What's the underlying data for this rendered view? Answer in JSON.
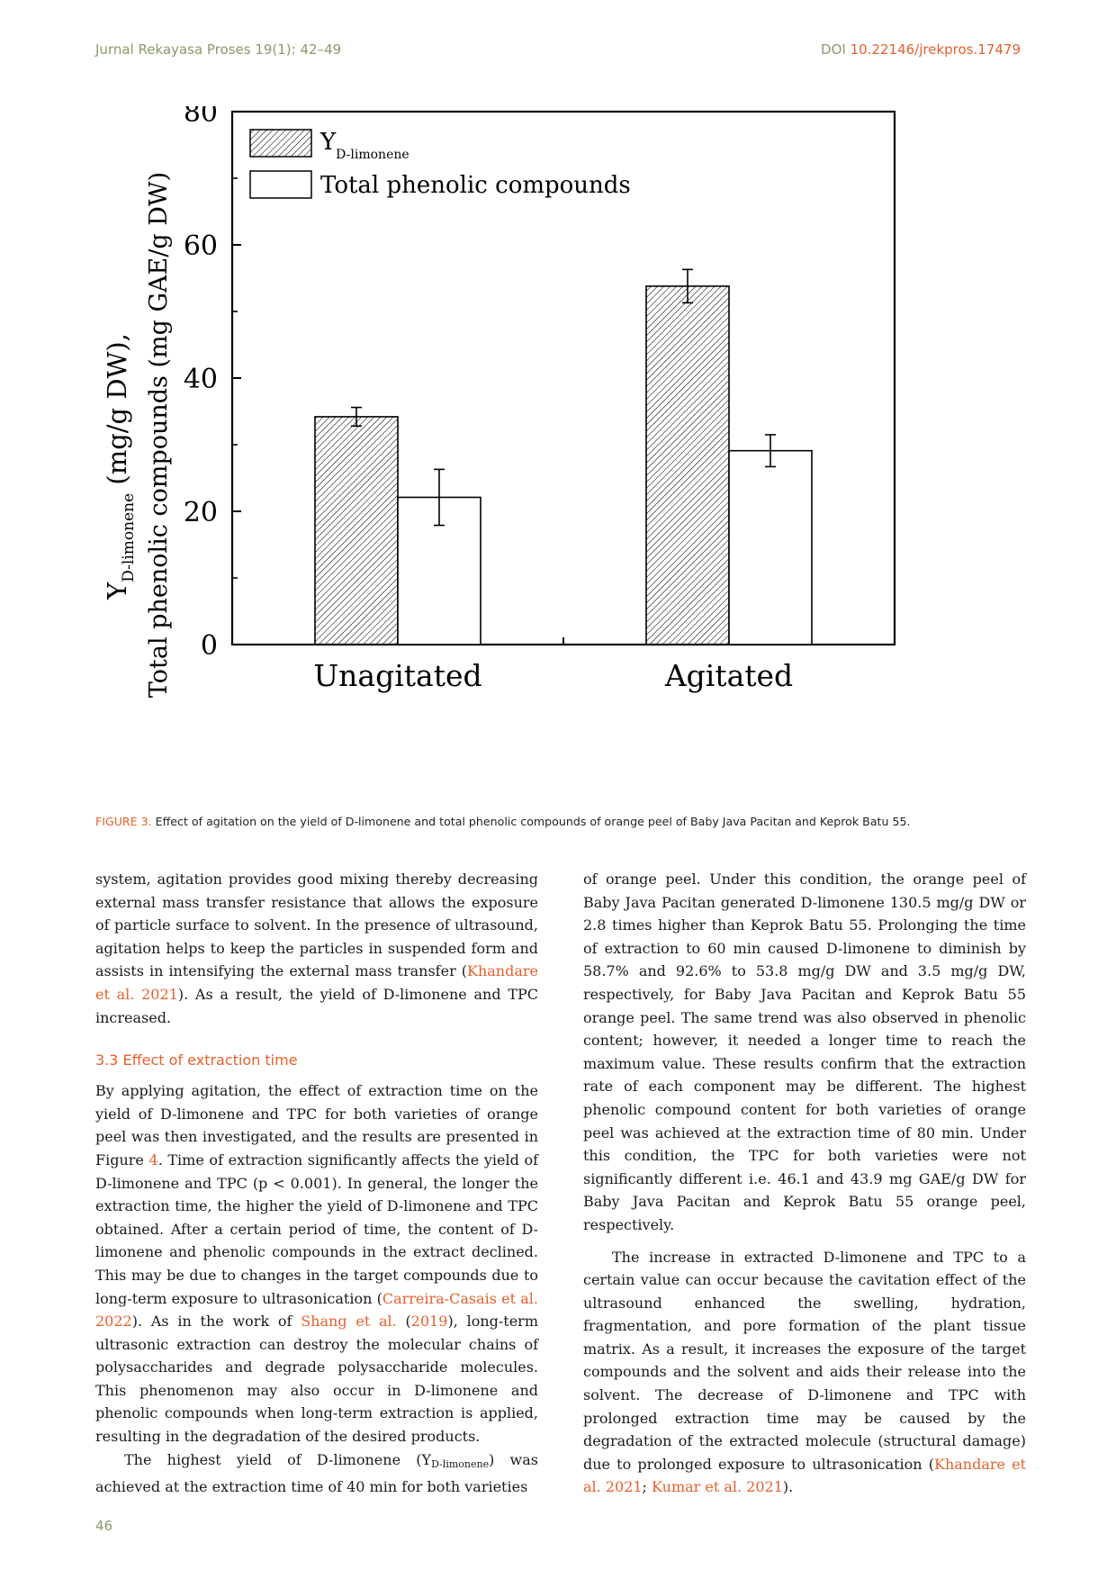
{
  "header": {
    "journal": "Jurnal Rekayasa Proses 19(1): 42–49",
    "doi_prefix": "DOI ",
    "doi": "10.22146/jrekpros.17479"
  },
  "chart_data": {
    "type": "bar",
    "categories": [
      "Unagitated",
      "Agitated"
    ],
    "series": [
      {
        "name": "Y D-limonene",
        "pattern": "hatched",
        "values": [
          34.2,
          53.8
        ],
        "errors": [
          1.4,
          2.5
        ]
      },
      {
        "name": "Total phenolic compounds",
        "pattern": "none",
        "values": [
          22.1,
          29.1
        ],
        "errors": [
          4.2,
          2.4
        ]
      }
    ],
    "ylim": [
      0,
      80
    ],
    "yticks": [
      "0",
      "20",
      "40",
      "60",
      "80"
    ],
    "ylabel_line1_main": "Y",
    "ylabel_line1_sub": "D-limonene",
    "ylabel_line1_tail": " (mg/g DW),",
    "ylabel_line2": "Total phenolic compounds (mg GAE/g DW)",
    "legend_y_main": "Y",
    "legend_y_sub": "D-limonene",
    "legend_tpc": "Total phenolic compounds",
    "legend_position": "top-left"
  },
  "caption": {
    "label": "FIGURE 3.",
    "text": " Effect of agitation on the yield of D-limonene and total phenolic compounds of orange peel of Baby Java Pacitan and Keprok Batu 55."
  },
  "left_column": {
    "p1_a": "system, agitation provides good mixing thereby decreasing external mass transfer resistance that allows the exposure of particle surface to solvent. In the presence of ultrasound, agitation helps to keep the particles in suspended form and assists in intensifying the external mass transfer (",
    "p1_cite": "Khandare et al. 2021",
    "p1_b": "). As a result, the yield of D-limonene and TPC increased.",
    "heading": "3.3  Effect of extraction time",
    "p2_a": "By applying agitation, the effect of extraction time on the yield of D-limonene and TPC for both varieties of orange peel was then investigated, and the results are presented in Figure ",
    "p2_fig": "4",
    "p2_b": ". Time of extraction significantly affects the yield of D-limonene and TPC (p < 0.001). In general, the longer the extraction time, the higher the yield of D-limonene and TPC obtained. After a certain period of time, the content of D-limonene and phenolic compounds in the extract declined. This may be due to changes in the target compounds due to long-term exposure to ultrasonication (",
    "p2_cite1": "Carreira-Casais et al. 2022",
    "p2_c": "). As in the work of ",
    "p2_cite2": "Shang et al.",
    "p2_d": " (",
    "p2_cite3": "2019",
    "p2_e": "), long-term ultrasonic extraction can destroy the molecular chains of polysaccharides and degrade polysaccharide molecules. This phenomenon may also occur in D-limonene and phenolic compounds when long-term extraction is applied, resulting in the degradation of the desired products.",
    "p3_a": "The highest yield of D-limonene (Y",
    "p3_sub": "D-limonene",
    "p3_b": ") was achieved at the extraction time of 40 min for both varieties"
  },
  "right_column": {
    "p1": "of orange peel. Under this condition, the orange peel of Baby Java Pacitan generated D-limonene 130.5 mg/g DW or 2.8 times higher than Keprok Batu 55. Prolonging the time of extraction to 60 min caused D-limonene to diminish by 58.7% and 92.6% to 53.8 mg/g DW and 3.5 mg/g DW, respectively, for Baby Java Pacitan and Keprok Batu 55 orange peel. The same trend was also observed in phenolic content; however, it needed a longer time to reach the maximum value. These results confirm that the extraction rate of each component may be different. The highest phenolic compound content for both varieties of orange peel was achieved at the extraction time of 80 min. Under this condition, the TPC for both varieties were not significantly different i.e. 46.1 and 43.9 mg GAE/g DW for Baby Java Pacitan and Keprok Batu 55 orange peel, respectively.",
    "p2_a": "The increase in extracted D-limonene and TPC to a certain value can occur because the cavitation effect of the ultrasound enhanced the swelling, hydration, fragmentation, and pore formation of the plant tissue matrix. As a result, it increases the exposure of the target compounds and the solvent and aids their release into the solvent. The decrease of D-limonene and TPC with prolonged extraction time may be caused by the degradation of the extracted molecule (structural damage) due to prolonged exposure to ultrasonication (",
    "p2_cite1": "Khandare et al. 2021",
    "p2_sep": "; ",
    "p2_cite2": "Kumar et al. 2021",
    "p2_b": ")."
  },
  "footer": {
    "page_number": "46"
  }
}
